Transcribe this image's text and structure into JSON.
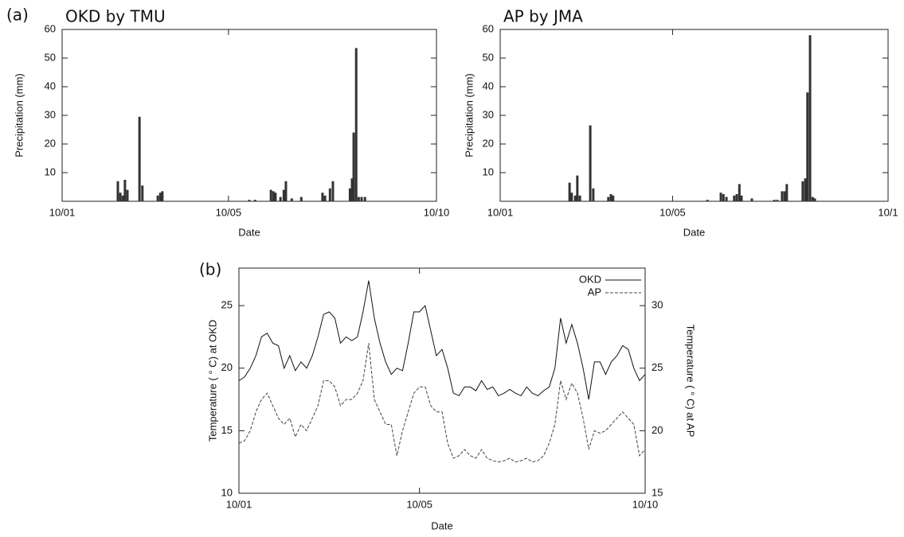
{
  "chart_data": [
    {
      "type": "bar",
      "panel_label": "(a)",
      "title": "OKD by TMU",
      "ylabel": "Precipitation (mm)",
      "xlabel": "Date",
      "color": "#333333",
      "x": [
        1.34,
        1.4,
        1.46,
        1.51,
        1.57,
        1.86,
        1.93,
        2.3,
        2.36,
        2.41,
        4.5,
        4.64,
        5.02,
        5.08,
        5.13,
        5.25,
        5.33,
        5.38,
        5.52,
        5.75,
        6.26,
        6.32,
        6.44,
        6.51,
        6.92,
        6.97,
        7.01,
        7.07,
        7.13,
        7.2,
        7.28
      ],
      "values": [
        7,
        3,
        2,
        7.5,
        4,
        29.5,
        5.5,
        2,
        3,
        3.5,
        0.5,
        0.5,
        4,
        3.5,
        3,
        1.5,
        4,
        7,
        1,
        1.5,
        3,
        2,
        4.5,
        7,
        4.5,
        8,
        24,
        53.5,
        1.5,
        1.5,
        1.5
      ],
      "xlim": [
        0,
        9
      ],
      "xticks": [
        {
          "value": 0,
          "label": "10/01"
        },
        {
          "value": 4,
          "label": "10/05"
        },
        {
          "value": 9,
          "label": "10/10"
        }
      ],
      "ylim": [
        0,
        60
      ],
      "yticks": [
        10,
        20,
        30,
        40,
        50,
        60
      ]
    },
    {
      "type": "bar",
      "title": "AP by JMA",
      "ylabel": "Precipitation (mm)",
      "xlabel": "Date",
      "color": "#333333",
      "x": [
        1.61,
        1.66,
        1.74,
        1.79,
        1.85,
        2.09,
        2.16,
        2.51,
        2.57,
        2.62,
        4.81,
        5.12,
        5.18,
        5.25,
        5.43,
        5.49,
        5.55,
        5.6,
        5.84,
        6.36,
        6.43,
        6.54,
        6.6,
        6.65,
        7.02,
        7.08,
        7.13,
        7.19,
        7.25,
        7.3
      ],
      "values": [
        6.5,
        3,
        2,
        9,
        2,
        26.5,
        4.5,
        1.5,
        2.5,
        2,
        0.5,
        3,
        2.5,
        1.5,
        2,
        2.5,
        6,
        2,
        1,
        0.5,
        0.5,
        3.5,
        3.5,
        6,
        7,
        8,
        38,
        58,
        1.5,
        1
      ],
      "xlim": [
        0,
        9
      ],
      "xticks": [
        {
          "value": 0,
          "label": "10/01"
        },
        {
          "value": 4,
          "label": "10/05"
        },
        {
          "value": 9,
          "label": "10/1"
        }
      ],
      "ylim": [
        0,
        60
      ],
      "yticks": [
        10,
        20,
        30,
        40,
        50,
        60
      ]
    },
    {
      "type": "line",
      "panel_label": "(b)",
      "ylabel": "Temperature ( ° C) at OKD",
      "y2label": "Temperature ( ° C) at AP",
      "xlabel": "Date",
      "legend": "upper right",
      "x": [
        0,
        0.125,
        0.25,
        0.375,
        0.5,
        0.625,
        0.75,
        0.875,
        1,
        1.125,
        1.25,
        1.375,
        1.5,
        1.625,
        1.75,
        1.875,
        2,
        2.125,
        2.25,
        2.375,
        2.5,
        2.625,
        2.75,
        2.875,
        3,
        3.125,
        3.25,
        3.375,
        3.5,
        3.625,
        3.75,
        3.875,
        4,
        4.125,
        4.25,
        4.375,
        4.5,
        4.625,
        4.75,
        4.875,
        5,
        5.125,
        5.25,
        5.375,
        5.5,
        5.625,
        5.75,
        5.875,
        6,
        6.125,
        6.25,
        6.375,
        6.5,
        6.625,
        6.75,
        6.875,
        7,
        7.125,
        7.25,
        7.375,
        7.5,
        7.625,
        7.75,
        7.875,
        8,
        8.125,
        8.25,
        8.375,
        8.5,
        8.625,
        8.75,
        8.875,
        9
      ],
      "series": [
        {
          "name": "OKD",
          "color": "#111111",
          "linestyle": "solid",
          "values": [
            19,
            19.3,
            20,
            21,
            22.5,
            22.8,
            22,
            21.8,
            20,
            21,
            19.8,
            20.5,
            20,
            21,
            22.5,
            24.3,
            24.5,
            24,
            22,
            22.5,
            22.2,
            22.5,
            24.5,
            27,
            24,
            22,
            20.5,
            19.5,
            20,
            19.8,
            22,
            24.5,
            24.5,
            25,
            23,
            21,
            21.5,
            20,
            18,
            17.8,
            18.5,
            18.5,
            18.2,
            19,
            18.3,
            18.5,
            17.8,
            18,
            18.3,
            18,
            17.8,
            18.5,
            18,
            17.8,
            18.2,
            18.5,
            20,
            24,
            22,
            23.5,
            22,
            20,
            17.5,
            20.5,
            20.5,
            19.5,
            20.5,
            21,
            21.8,
            21.5,
            20,
            19,
            19.5
          ]
        },
        {
          "name": "AP",
          "color": "#444444",
          "linestyle": "dashed",
          "axis": "y2",
          "values": [
            19,
            19.2,
            20,
            21.5,
            22.5,
            23,
            22,
            21,
            20.5,
            21,
            19.5,
            20.5,
            20,
            21,
            22,
            24,
            24,
            23.5,
            22,
            22.5,
            22.5,
            23,
            24,
            27,
            22.5,
            21.5,
            20.5,
            20.5,
            18,
            20,
            21.5,
            23,
            23.5,
            23.5,
            22,
            21.5,
            21.5,
            19,
            17.8,
            18,
            18.5,
            18,
            17.8,
            18.5,
            17.8,
            17.6,
            17.5,
            17.6,
            17.8,
            17.5,
            17.6,
            17.8,
            17.5,
            17.6,
            18,
            19,
            20.5,
            24,
            22.5,
            23.8,
            23,
            21,
            18.5,
            20,
            19.8,
            20,
            20.5,
            21,
            21.5,
            21,
            20.5,
            18,
            18.5
          ]
        }
      ],
      "xlim": [
        0,
        9
      ],
      "xticks": [
        {
          "value": 0,
          "label": "10/01"
        },
        {
          "value": 4,
          "label": "10/05"
        },
        {
          "value": 9,
          "label": "10/10"
        }
      ],
      "ylim": [
        10,
        28
      ],
      "yticks": [
        10,
        15,
        20,
        25
      ],
      "y2lim": [
        15,
        33
      ],
      "y2ticks": [
        15,
        20,
        25,
        30
      ]
    }
  ]
}
